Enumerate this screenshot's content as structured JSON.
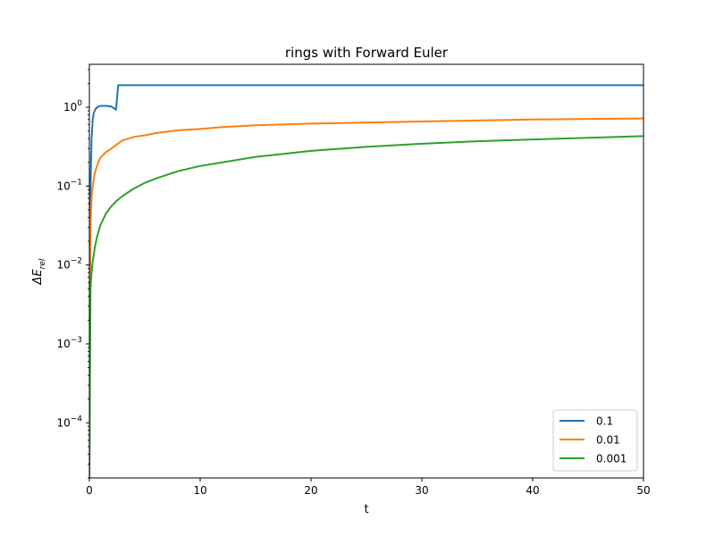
{
  "chart_data": {
    "type": "line",
    "title": "rings with Forward Euler",
    "xlabel": "t",
    "ylabel_base": "ΔE",
    "ylabel_sub": "rel",
    "xlim": [
      0,
      50
    ],
    "ylim": [
      2e-05,
      3.5
    ],
    "yscale": "log",
    "xticks": [
      0,
      10,
      20,
      30,
      40,
      50
    ],
    "xtick_labels": [
      "0",
      "10",
      "20",
      "30",
      "40",
      "50"
    ],
    "yticks": [
      0.0001,
      0.001,
      0.01,
      0.1,
      1
    ],
    "ytick_labels": [
      {
        "base": "10",
        "exp": "−4"
      },
      {
        "base": "10",
        "exp": "−3"
      },
      {
        "base": "10",
        "exp": "−2"
      },
      {
        "base": "10",
        "exp": "−1"
      },
      {
        "base": "10",
        "exp": "0"
      }
    ],
    "grid": false,
    "legend_position": "lower-right",
    "series": [
      {
        "name": "0.1",
        "color": "#1f77b4",
        "x": [
          0,
          0.1,
          0.2,
          0.3,
          0.4,
          0.6,
          0.8,
          1.0,
          1.5,
          2.0,
          2.4,
          2.5,
          2.6,
          5,
          10,
          20,
          30,
          40,
          50
        ],
        "y": [
          2e-05,
          0.1,
          0.4,
          0.7,
          0.85,
          0.97,
          1.02,
          1.04,
          1.04,
          1.02,
          0.93,
          1.3,
          1.9,
          1.9,
          1.9,
          1.9,
          1.9,
          1.9,
          1.9
        ]
      },
      {
        "name": "0.01",
        "color": "#ff7f0e",
        "x": [
          0,
          0.05,
          0.1,
          0.2,
          0.3,
          0.5,
          0.8,
          1.0,
          1.5,
          2.0,
          2.5,
          3,
          3.5,
          4,
          5,
          6,
          7,
          8,
          10,
          12,
          15,
          20,
          25,
          30,
          35,
          40,
          45,
          50
        ],
        "y": [
          2e-05,
          0.01,
          0.03,
          0.07,
          0.1,
          0.15,
          0.2,
          0.23,
          0.27,
          0.3,
          0.34,
          0.38,
          0.4,
          0.42,
          0.44,
          0.47,
          0.49,
          0.51,
          0.53,
          0.56,
          0.59,
          0.62,
          0.64,
          0.66,
          0.68,
          0.7,
          0.71,
          0.72
        ]
      },
      {
        "name": "0.001",
        "color": "#2ca02c",
        "x": [
          0,
          0.1,
          0.2,
          0.3,
          0.5,
          0.7,
          1.0,
          1.5,
          2.0,
          2.5,
          3,
          4,
          5,
          6,
          8,
          10,
          12,
          15,
          20,
          25,
          30,
          35,
          40,
          45,
          50
        ],
        "y": [
          2e-05,
          0.005,
          0.008,
          0.011,
          0.017,
          0.023,
          0.032,
          0.045,
          0.056,
          0.066,
          0.075,
          0.093,
          0.11,
          0.125,
          0.155,
          0.18,
          0.2,
          0.235,
          0.28,
          0.315,
          0.345,
          0.37,
          0.39,
          0.41,
          0.43
        ]
      }
    ]
  }
}
